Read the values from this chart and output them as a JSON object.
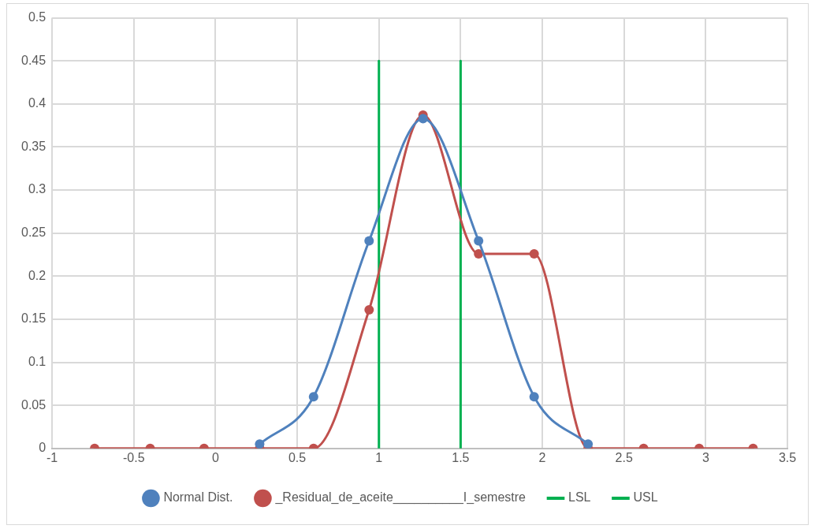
{
  "chart_data": {
    "type": "line",
    "xlim": [
      -1,
      3.5
    ],
    "xticks": [
      -1,
      -0.5,
      0,
      0.5,
      1,
      1.5,
      2,
      2.5,
      3,
      3.5
    ],
    "ylim": [
      0,
      0.5
    ],
    "yticks": [
      0,
      0.05,
      0.1,
      0.15,
      0.2,
      0.25,
      0.3,
      0.35,
      0.4,
      0.45,
      0.5
    ],
    "grid": true,
    "legend": "bottom",
    "marker": "circle",
    "line_style": "solid",
    "series": [
      {
        "name": "Normal Dist.",
        "color": "#4f81bd",
        "x": [
          0.27,
          0.6,
          0.94,
          1.27,
          1.61,
          1.95,
          2.28
        ],
        "values": [
          0.005,
          0.06,
          0.241,
          0.383,
          0.241,
          0.06,
          0.005
        ]
      },
      {
        "name": "_Residual_de_aceite__________I_semestre",
        "color": "#c0504d",
        "x": [
          -0.74,
          -0.4,
          -0.07,
          0.27,
          0.6,
          0.94,
          1.27,
          1.61,
          1.95,
          2.28,
          2.62,
          2.96,
          3.29
        ],
        "values": [
          0,
          0,
          0,
          0,
          0,
          0.161,
          0.387,
          0.226,
          0.226,
          0,
          0,
          0,
          0
        ]
      },
      {
        "name": "LSL",
        "color": "#00b050",
        "marker": "none",
        "x": [
          1,
          1
        ],
        "values": [
          0,
          0.45
        ]
      },
      {
        "name": "USL",
        "color": "#00b050",
        "marker": "none",
        "x": [
          1.5,
          1.5
        ],
        "values": [
          0,
          0.45
        ]
      }
    ]
  }
}
